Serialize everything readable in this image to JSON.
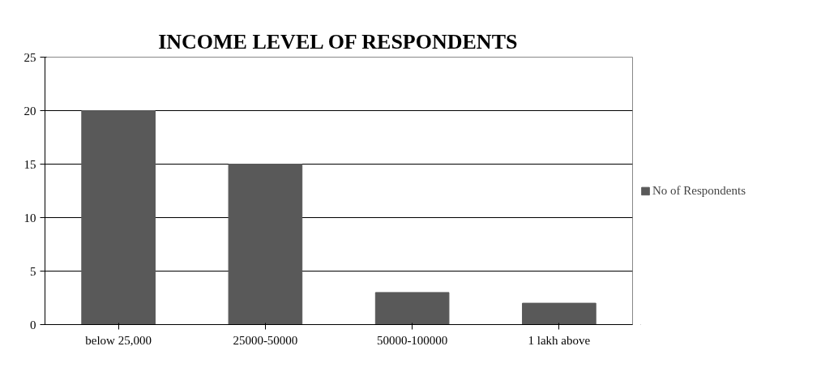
{
  "chart_data": {
    "type": "bar",
    "title": "INCOME LEVEL OF RESPONDENTS",
    "categories": [
      "below 25,000",
      "25000-50000",
      "50000-100000",
      "1 lakh above"
    ],
    "series": [
      {
        "name": "No of Respondents",
        "color": "#595959",
        "values": [
          20,
          15,
          3,
          2
        ]
      }
    ],
    "ylim": [
      0,
      25
    ],
    "yticks": [
      0,
      5,
      10,
      15,
      20,
      25
    ],
    "grid": "y",
    "legend": "right"
  }
}
